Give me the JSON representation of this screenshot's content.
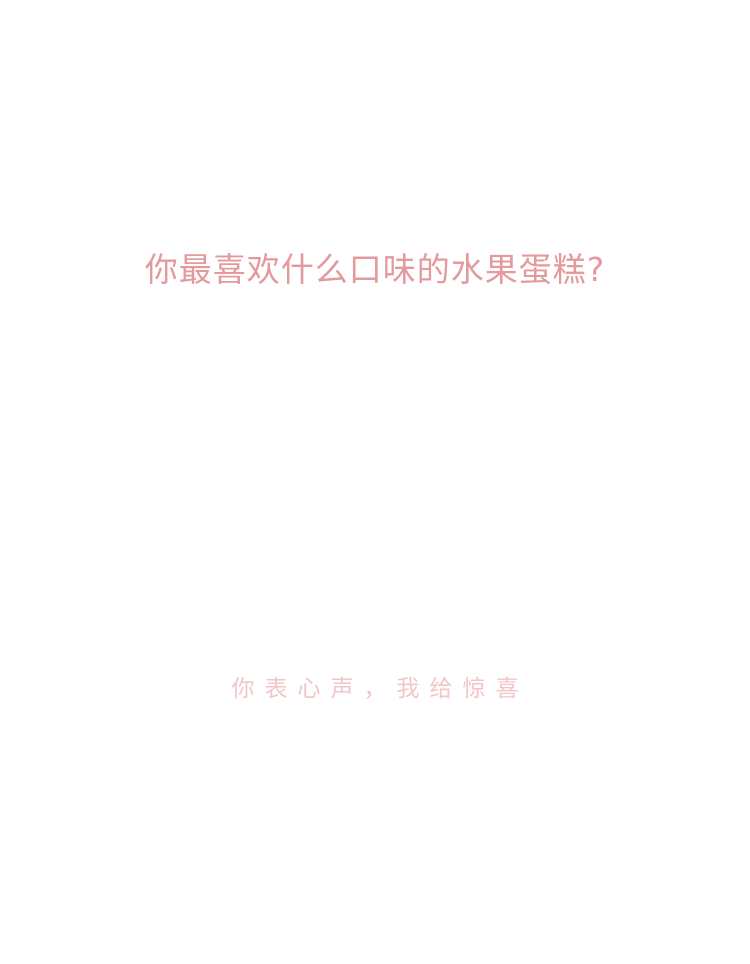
{
  "headline": "你最喜欢什么口味的水果蛋糕?",
  "tagline": "你表心声，我给惊喜",
  "colors": {
    "background": "#ffffff",
    "headline": "#e49a9c",
    "tagline": "#f2c6c8"
  }
}
